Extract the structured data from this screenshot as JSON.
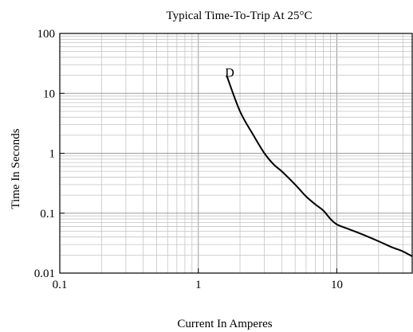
{
  "chart_data": {
    "type": "line",
    "title": "Typical Time-To-Trip At 25°C",
    "xlabel": "Current In Amperes",
    "ylabel": "Time In Seconds",
    "xscale": "log",
    "yscale": "log",
    "xlim": [
      0.1,
      35
    ],
    "ylim": [
      0.01,
      100
    ],
    "grid": true,
    "x_ticks": [
      {
        "value": 0.1,
        "label": "0.1"
      },
      {
        "value": 1,
        "label": "1"
      },
      {
        "value": 10,
        "label": "10"
      }
    ],
    "y_ticks": [
      {
        "value": 0.01,
        "label": "0.01"
      },
      {
        "value": 0.1,
        "label": "0.1"
      },
      {
        "value": 1,
        "label": "1"
      },
      {
        "value": 10,
        "label": "10"
      },
      {
        "value": 100,
        "label": "100"
      }
    ],
    "series": [
      {
        "label": "D",
        "color": "#000000",
        "points": [
          [
            1.6,
            20
          ],
          [
            2.0,
            5.0
          ],
          [
            2.5,
            2.0
          ],
          [
            3.0,
            1.0
          ],
          [
            3.5,
            0.65
          ],
          [
            4.0,
            0.5
          ],
          [
            5.0,
            0.3
          ],
          [
            6.0,
            0.19
          ],
          [
            7.0,
            0.14
          ],
          [
            8.0,
            0.11
          ],
          [
            9.0,
            0.08
          ],
          [
            10.0,
            0.065
          ],
          [
            12.0,
            0.055
          ],
          [
            15.0,
            0.045
          ],
          [
            20.0,
            0.034
          ],
          [
            25.0,
            0.027
          ],
          [
            30.0,
            0.023
          ],
          [
            35.0,
            0.019
          ]
        ]
      }
    ]
  }
}
